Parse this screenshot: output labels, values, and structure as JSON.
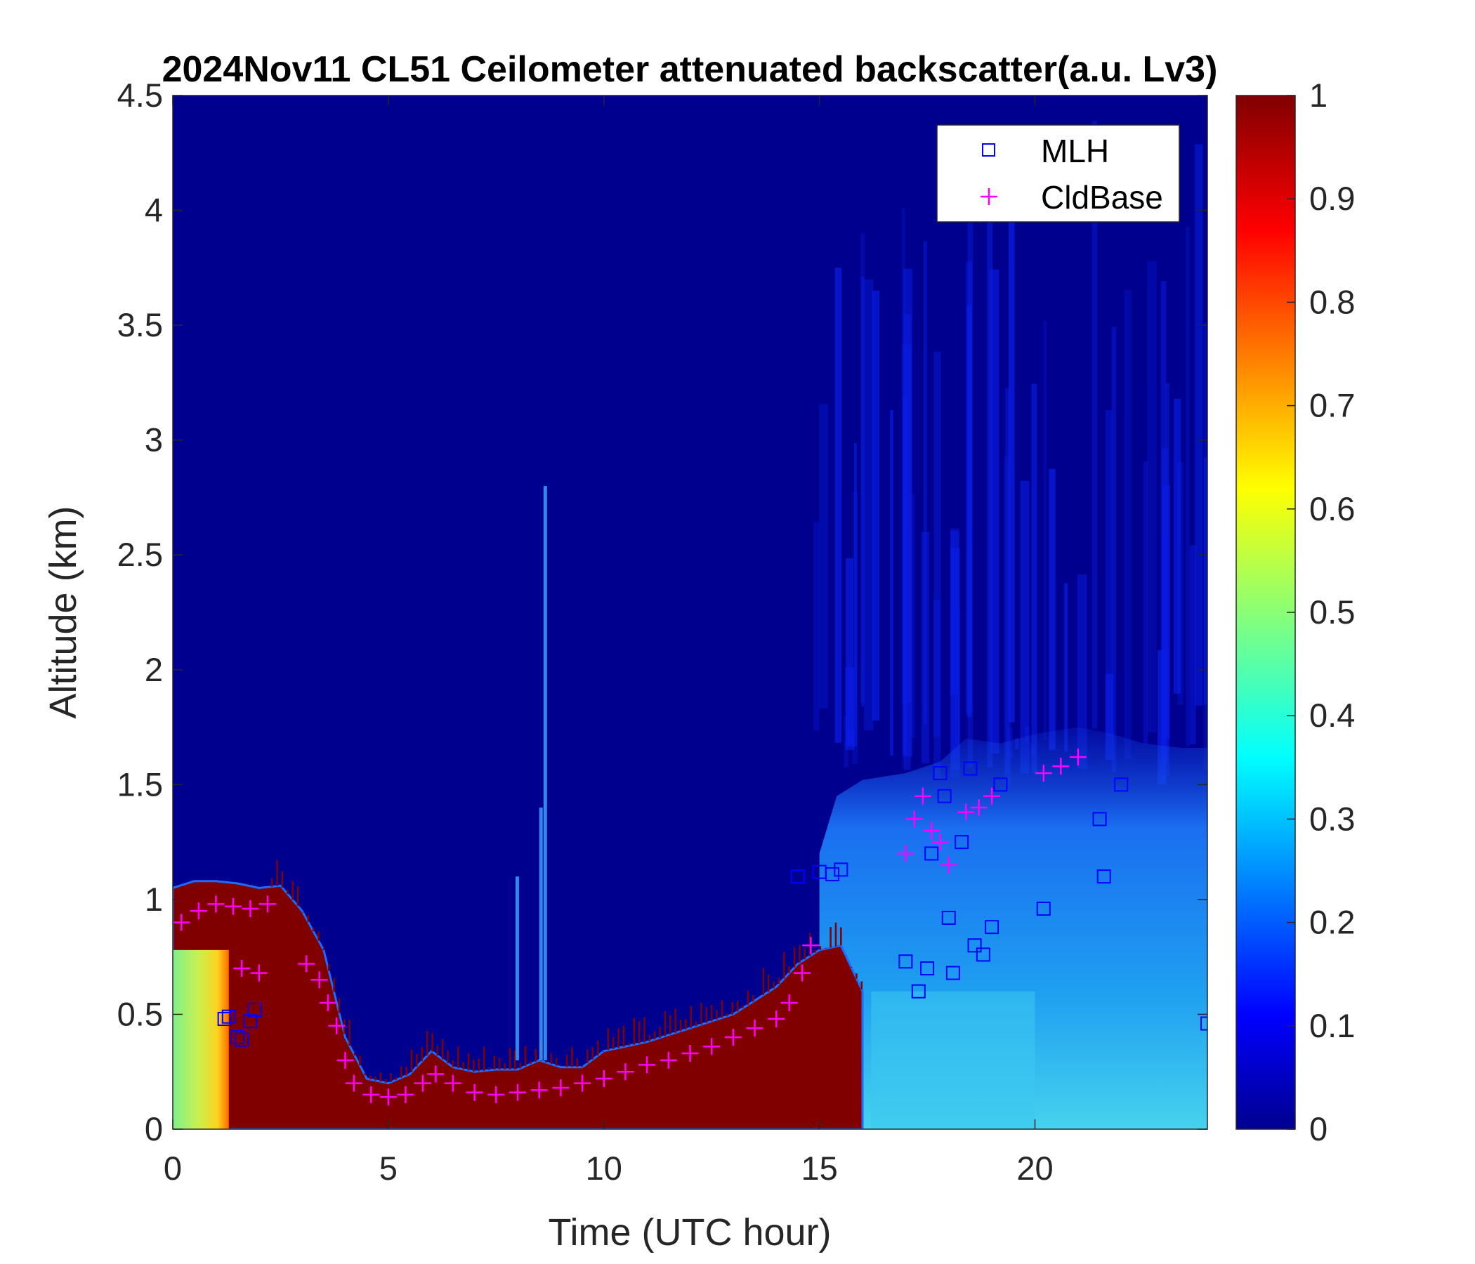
{
  "chart_data": {
    "type": "heatmap",
    "title": "2024Nov11 CL51 Ceilometer attenuated backscatter(a.u. Lv3)",
    "xlabel": "Time (UTC hour)",
    "ylabel": "Altitude (km)",
    "xlim": [
      0,
      24
    ],
    "ylim": [
      0,
      4.5
    ],
    "x_ticks": [
      "0",
      "5",
      "10",
      "15",
      "20"
    ],
    "y_ticks": [
      "0",
      "0.5",
      "1",
      "1.5",
      "2",
      "2.5",
      "3",
      "3.5",
      "4",
      "4.5"
    ],
    "colorbar": {
      "colormap": "jet",
      "range": [
        0,
        1
      ],
      "ticks": [
        "0",
        "0.1",
        "0.2",
        "0.3",
        "0.4",
        "0.5",
        "0.6",
        "0.7",
        "0.8",
        "0.9",
        "1"
      ]
    },
    "legend": {
      "position": "top-right",
      "entries": [
        {
          "label": "MLH",
          "marker": "square",
          "color": "#0000ff"
        },
        {
          "label": "CldBase",
          "marker": "plus",
          "color": "#ff00ff"
        }
      ]
    },
    "colors": {
      "background": "#00008f",
      "upper_noise": "#0a1ee6",
      "aerosol_layer": "#1e8cf0",
      "aerosol_light": "#3cc8f0",
      "cloud_core": "#800000",
      "mlh_marker": "#0000ff",
      "cldbase_marker": "#ff00ff"
    },
    "boundary_layer_top_km": {
      "hour": [
        0,
        0.5,
        1,
        1.5,
        2,
        2.5,
        3,
        3.5,
        4,
        4.5,
        5,
        5.5,
        6,
        6.5,
        7,
        7.5,
        8,
        8.5,
        9,
        9.5,
        10,
        11,
        12,
        13,
        14,
        14.5,
        15,
        15.5,
        16
      ],
      "altitude": [
        1.05,
        1.08,
        1.08,
        1.07,
        1.05,
        1.06,
        0.95,
        0.78,
        0.4,
        0.22,
        0.2,
        0.24,
        0.34,
        0.27,
        0.25,
        0.26,
        0.26,
        0.3,
        0.27,
        0.27,
        0.34,
        0.38,
        0.44,
        0.5,
        0.62,
        0.72,
        0.78,
        0.8,
        0.6
      ]
    },
    "cldbase": {
      "hour": [
        0.2,
        0.6,
        1.0,
        1.4,
        1.8,
        2.2,
        1.6,
        2.0,
        3.1,
        3.4,
        3.6,
        3.8,
        4.0,
        4.2,
        4.6,
        5.0,
        5.4,
        5.8,
        6.1,
        6.5,
        7.0,
        7.5,
        8.0,
        8.5,
        9.0,
        9.5,
        10.0,
        10.5,
        11.0,
        11.5,
        12.0,
        12.5,
        13.0,
        13.5,
        14.0,
        14.3,
        14.6,
        14.8,
        17.0,
        17.2,
        17.4,
        17.6,
        17.8,
        18.0,
        18.4,
        18.7,
        19.0,
        20.2,
        20.6,
        21.0
      ],
      "altitude": [
        0.9,
        0.95,
        0.98,
        0.97,
        0.96,
        0.98,
        0.7,
        0.68,
        0.72,
        0.65,
        0.55,
        0.45,
        0.3,
        0.2,
        0.15,
        0.14,
        0.15,
        0.2,
        0.24,
        0.2,
        0.16,
        0.15,
        0.16,
        0.17,
        0.18,
        0.2,
        0.22,
        0.25,
        0.28,
        0.3,
        0.33,
        0.36,
        0.4,
        0.44,
        0.48,
        0.55,
        0.68,
        0.8,
        1.2,
        1.35,
        1.45,
        1.3,
        1.25,
        1.15,
        1.38,
        1.4,
        1.45,
        1.55,
        1.58,
        1.62
      ]
    },
    "mlh": {
      "hour": [
        1.2,
        1.3,
        1.5,
        1.6,
        1.8,
        1.9,
        14.5,
        15.0,
        15.3,
        15.5,
        17.0,
        17.3,
        17.5,
        17.6,
        17.8,
        17.9,
        18.0,
        18.1,
        18.3,
        18.5,
        18.6,
        18.8,
        19.0,
        19.2,
        20.2,
        21.5,
        21.6,
        22.0,
        24.0
      ],
      "altitude": [
        0.48,
        0.49,
        0.4,
        0.39,
        0.47,
        0.52,
        1.1,
        1.12,
        1.11,
        1.13,
        0.73,
        0.6,
        0.7,
        1.2,
        1.55,
        1.45,
        0.92,
        0.68,
        1.25,
        1.57,
        0.8,
        0.76,
        0.88,
        1.5,
        0.96,
        1.35,
        1.1,
        1.5,
        0.46
      ]
    }
  }
}
